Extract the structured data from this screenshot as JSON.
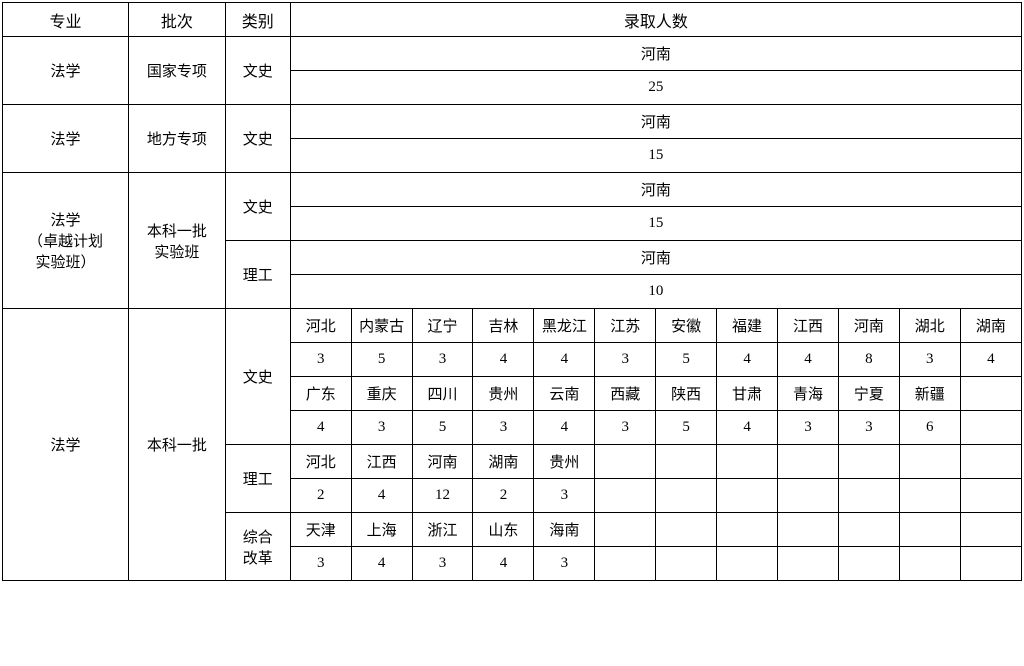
{
  "headers": {
    "major": "专业",
    "batch": "批次",
    "category": "类别",
    "count": "录取人数"
  },
  "sections": {
    "s1": {
      "major": "法学",
      "batch": "国家专项",
      "category": "文史",
      "province": "河南",
      "value": "25"
    },
    "s2": {
      "major": "法学",
      "batch": "地方专项",
      "category": "文史",
      "province": "河南",
      "value": "15"
    },
    "s3": {
      "major": "法学\n（卓越计划\n实验班）",
      "batch": "本科一批\n实验班",
      "cat_ws": "文史",
      "ws_province": "河南",
      "ws_value": "15",
      "cat_lg": "理工",
      "lg_province": "河南",
      "lg_value": "10"
    },
    "s4": {
      "major": "法学",
      "batch": "本科一批",
      "ws": {
        "category": "文史",
        "row1p": [
          "河北",
          "内蒙古",
          "辽宁",
          "吉林",
          "黑龙江",
          "江苏",
          "安徽",
          "福建",
          "江西",
          "河南",
          "湖北",
          "湖南"
        ],
        "row1v": [
          "3",
          "5",
          "3",
          "4",
          "4",
          "3",
          "5",
          "4",
          "4",
          "8",
          "3",
          "4"
        ],
        "row2p": [
          "广东",
          "重庆",
          "四川",
          "贵州",
          "云南",
          "西藏",
          "陕西",
          "甘肃",
          "青海",
          "宁夏",
          "新疆"
        ],
        "row2v": [
          "4",
          "3",
          "5",
          "3",
          "4",
          "3",
          "5",
          "4",
          "3",
          "3",
          "6"
        ]
      },
      "lg": {
        "category": "理工",
        "p": [
          "河北",
          "江西",
          "河南",
          "湖南",
          "贵州"
        ],
        "v": [
          "2",
          "4",
          "12",
          "2",
          "3"
        ]
      },
      "zh": {
        "category": "综合\n改革",
        "p": [
          "天津",
          "上海",
          "浙江",
          "山东",
          "海南"
        ],
        "v": [
          "3",
          "4",
          "3",
          "4",
          "3"
        ]
      }
    }
  },
  "style": {
    "border_color": "#000000",
    "background": "#ffffff",
    "font_family": "SimSun",
    "header_fontsize": 16,
    "body_fontsize": 15
  }
}
